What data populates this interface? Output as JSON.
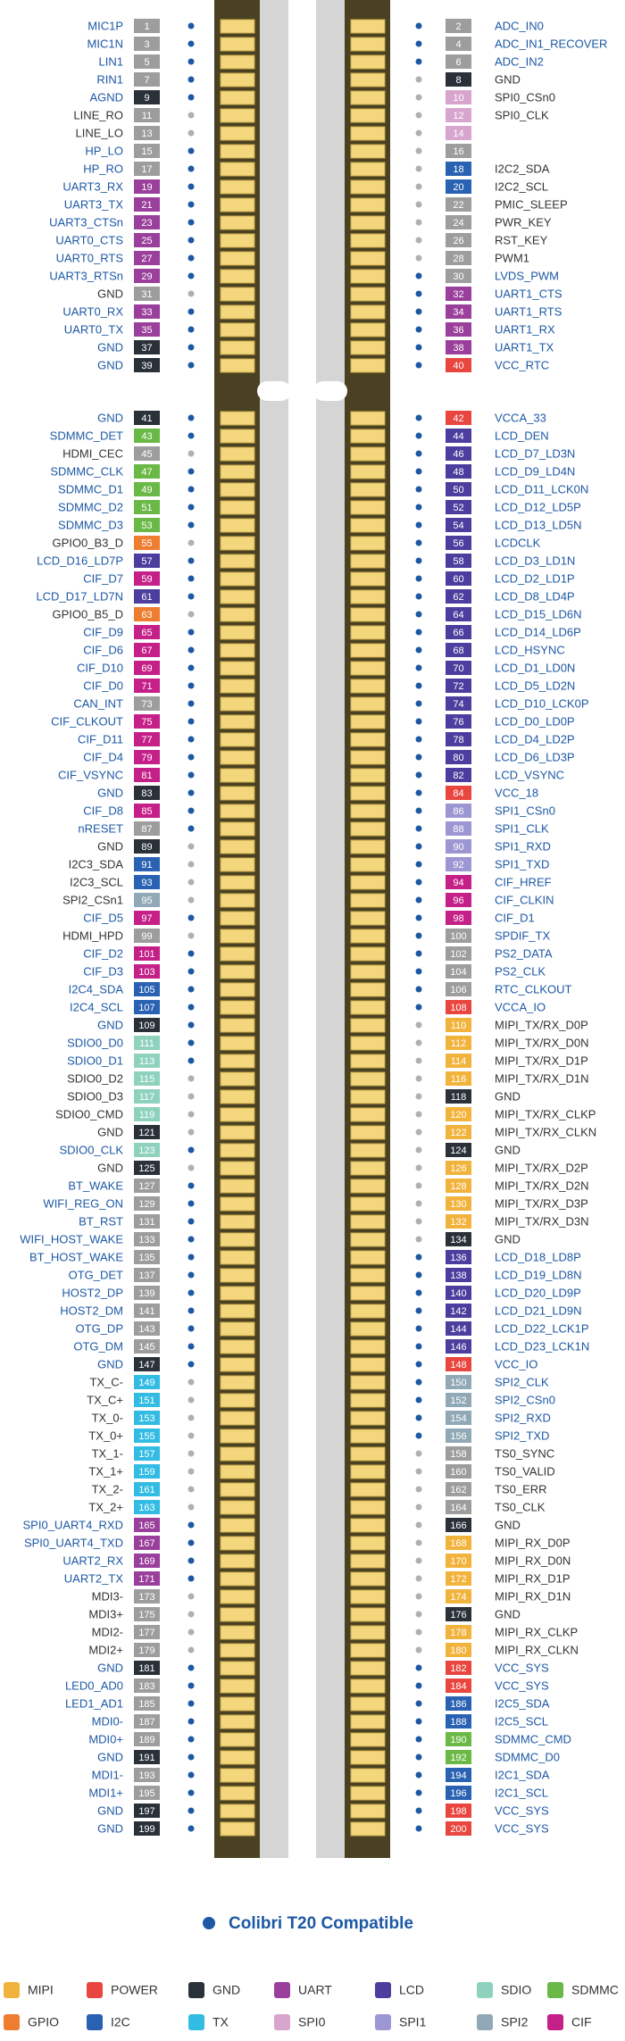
{
  "pins": {
    "left": [
      [
        1,
        "MIC1P",
        null,
        true
      ],
      [
        3,
        "MIC1N",
        null,
        true
      ],
      [
        5,
        "LIN1",
        null,
        true
      ],
      [
        7,
        "RIN1",
        null,
        true
      ],
      [
        9,
        "AGND",
        "GND",
        true
      ],
      [
        11,
        "LINE_RO",
        null,
        false
      ],
      [
        13,
        "LINE_LO",
        null,
        false
      ],
      [
        15,
        "HP_LO",
        null,
        true
      ],
      [
        17,
        "HP_RO",
        null,
        true
      ],
      [
        19,
        "UART3_RX",
        "UART",
        true
      ],
      [
        21,
        "UART3_TX",
        "UART",
        true
      ],
      [
        23,
        "UART3_CTSn",
        "UART",
        true
      ],
      [
        25,
        "UART0_CTS",
        "UART",
        true
      ],
      [
        27,
        "UART0_RTS",
        "UART",
        true
      ],
      [
        29,
        "UART3_RTSn",
        "UART",
        true
      ],
      [
        31,
        "GND",
        null,
        false
      ],
      [
        33,
        "UART0_RX",
        "UART",
        true
      ],
      [
        35,
        "UART0_TX",
        "UART",
        true
      ],
      [
        37,
        "GND",
        "GND",
        true
      ],
      [
        39,
        "GND",
        "GND",
        true
      ],
      [
        41,
        "GND",
        "GND",
        true
      ],
      [
        43,
        "SDMMC_DET",
        "SDMMC",
        true
      ],
      [
        45,
        "HDMI_CEC",
        null,
        false
      ],
      [
        47,
        "SDMMC_CLK",
        "SDMMC",
        true
      ],
      [
        49,
        "SDMMC_D1",
        "SDMMC",
        true
      ],
      [
        51,
        "SDMMC_D2",
        "SDMMC",
        true
      ],
      [
        53,
        "SDMMC_D3",
        "SDMMC",
        true
      ],
      [
        55,
        "GPIO0_B3_D",
        "GPIO",
        false
      ],
      [
        57,
        "LCD_D16_LD7P",
        "LCD",
        true
      ],
      [
        59,
        "CIF_D7",
        "CIF",
        true
      ],
      [
        61,
        "LCD_D17_LD7N",
        "LCD",
        true
      ],
      [
        63,
        "GPIO0_B5_D",
        "GPIO",
        false
      ],
      [
        65,
        "CIF_D9",
        "CIF",
        true
      ],
      [
        67,
        "CIF_D6",
        "CIF",
        true
      ],
      [
        69,
        "CIF_D10",
        "CIF",
        true
      ],
      [
        71,
        "CIF_D0",
        "CIF",
        true
      ],
      [
        73,
        "CAN_INT",
        null,
        true
      ],
      [
        75,
        "CIF_CLKOUT",
        "CIF",
        true
      ],
      [
        77,
        "CIF_D11",
        "CIF",
        true
      ],
      [
        79,
        "CIF_D4",
        "CIF",
        true
      ],
      [
        81,
        "CIF_VSYNC",
        "CIF",
        true
      ],
      [
        83,
        "GND",
        "GND",
        true
      ],
      [
        85,
        "CIF_D8",
        "CIF",
        true
      ],
      [
        87,
        "nRESET",
        null,
        true
      ],
      [
        89,
        "GND",
        "GND",
        false
      ],
      [
        91,
        "I2C3_SDA",
        "I2C",
        false
      ],
      [
        93,
        "I2C3_SCL",
        "I2C",
        false
      ],
      [
        95,
        "SPI2_CSn1",
        "SPI2",
        false
      ],
      [
        97,
        "CIF_D5",
        "CIF",
        true
      ],
      [
        99,
        "HDMI_HPD",
        null,
        false
      ],
      [
        101,
        "CIF_D2",
        "CIF",
        true
      ],
      [
        103,
        "CIF_D3",
        "CIF",
        true
      ],
      [
        105,
        "I2C4_SDA",
        "I2C",
        true
      ],
      [
        107,
        "I2C4_SCL",
        "I2C",
        true
      ],
      [
        109,
        "GND",
        "GND",
        true
      ],
      [
        111,
        "SDIO0_D0",
        "SDIO",
        true
      ],
      [
        113,
        "SDIO0_D1",
        "SDIO",
        true
      ],
      [
        115,
        "SDIO0_D2",
        "SDIO",
        false
      ],
      [
        117,
        "SDIO0_D3",
        "SDIO",
        false
      ],
      [
        119,
        "SDIO0_CMD",
        "SDIO",
        false
      ],
      [
        121,
        "GND",
        "GND",
        false
      ],
      [
        123,
        "SDIO0_CLK",
        "SDIO",
        true
      ],
      [
        125,
        "GND",
        "GND",
        false
      ],
      [
        127,
        "BT_WAKE",
        null,
        true
      ],
      [
        129,
        "WIFI_REG_ON",
        null,
        true
      ],
      [
        131,
        "BT_RST",
        null,
        true
      ],
      [
        133,
        "WIFI_HOST_WAKE",
        null,
        true
      ],
      [
        135,
        "BT_HOST_WAKE",
        null,
        true
      ],
      [
        137,
        "OTG_DET",
        null,
        true
      ],
      [
        139,
        "HOST2_DP",
        null,
        true
      ],
      [
        141,
        "HOST2_DM",
        null,
        true
      ],
      [
        143,
        "OTG_DP",
        null,
        true
      ],
      [
        145,
        "OTG_DM",
        null,
        true
      ],
      [
        147,
        "GND",
        "GND",
        true
      ],
      [
        149,
        "TX_C-",
        "TX",
        false
      ],
      [
        151,
        "TX_C+",
        "TX",
        false
      ],
      [
        153,
        "TX_0-",
        "TX",
        false
      ],
      [
        155,
        "TX_0+",
        "TX",
        false
      ],
      [
        157,
        "TX_1-",
        "TX",
        false
      ],
      [
        159,
        "TX_1+",
        "TX",
        false
      ],
      [
        161,
        "TX_2-",
        "TX",
        false
      ],
      [
        163,
        "TX_2+",
        "TX",
        false
      ],
      [
        165,
        "SPI0_UART4_RXD",
        "UART",
        true
      ],
      [
        167,
        "SPI0_UART4_TXD",
        "UART",
        true
      ],
      [
        169,
        "UART2_RX",
        "UART",
        true
      ],
      [
        171,
        "UART2_TX",
        "UART",
        true
      ],
      [
        173,
        "MDI3-",
        null,
        false
      ],
      [
        175,
        "MDI3+",
        null,
        false
      ],
      [
        177,
        "MDI2-",
        null,
        false
      ],
      [
        179,
        "MDI2+",
        null,
        false
      ],
      [
        181,
        "GND",
        "GND",
        true
      ],
      [
        183,
        "LED0_AD0",
        null,
        true
      ],
      [
        185,
        "LED1_AD1",
        null,
        true
      ],
      [
        187,
        "MDI0-",
        null,
        true
      ],
      [
        189,
        "MDI0+",
        null,
        true
      ],
      [
        191,
        "GND",
        "GND",
        true
      ],
      [
        193,
        "MDI1-",
        null,
        true
      ],
      [
        195,
        "MDI1+",
        null,
        true
      ],
      [
        197,
        "GND",
        "GND",
        true
      ],
      [
        199,
        "GND",
        "GND",
        true
      ]
    ],
    "right": [
      [
        2,
        "ADC_IN0",
        null,
        true
      ],
      [
        4,
        "ADC_IN1_RECOVER",
        null,
        true
      ],
      [
        6,
        "ADC_IN2",
        null,
        true
      ],
      [
        8,
        "GND",
        "GND",
        false
      ],
      [
        10,
        "SPI0_CSn0",
        "SPI0",
        false
      ],
      [
        12,
        "SPI0_CLK",
        "SPI0",
        false
      ],
      [
        14,
        null,
        "SPI0",
        false
      ],
      [
        16,
        null,
        null,
        false
      ],
      [
        18,
        "I2C2_SDA",
        "I2C",
        false
      ],
      [
        20,
        "I2C2_SCL",
        "I2C",
        false
      ],
      [
        22,
        "PMIC_SLEEP",
        null,
        false
      ],
      [
        24,
        "PWR_KEY",
        null,
        false
      ],
      [
        26,
        "RST_KEY",
        null,
        false
      ],
      [
        28,
        "PWM1",
        null,
        false
      ],
      [
        30,
        "LVDS_PWM",
        null,
        true
      ],
      [
        32,
        "UART1_CTS",
        "UART",
        true
      ],
      [
        34,
        "UART1_RTS",
        "UART",
        true
      ],
      [
        36,
        "UART1_RX",
        "UART",
        true
      ],
      [
        38,
        "UART1_TX",
        "UART",
        true
      ],
      [
        40,
        "VCC_RTC",
        "POWER",
        true
      ],
      [
        42,
        "VCCA_33",
        "POWER",
        true
      ],
      [
        44,
        "LCD_DEN",
        "LCD",
        true
      ],
      [
        46,
        "LCD_D7_LD3N",
        "LCD",
        true
      ],
      [
        48,
        "LCD_D9_LD4N",
        "LCD",
        true
      ],
      [
        50,
        "LCD_D11_LCK0N",
        "LCD",
        true
      ],
      [
        52,
        "LCD_D12_LD5P",
        "LCD",
        true
      ],
      [
        54,
        "LCD_D13_LD5N",
        "LCD",
        true
      ],
      [
        56,
        "LCDCLK",
        "LCD",
        true
      ],
      [
        58,
        "LCD_D3_LD1N",
        "LCD",
        true
      ],
      [
        60,
        "LCD_D2_LD1P",
        "LCD",
        true
      ],
      [
        62,
        "LCD_D8_LD4P",
        "LCD",
        true
      ],
      [
        64,
        "LCD_D15_LD6N",
        "LCD",
        true
      ],
      [
        66,
        "LCD_D14_LD6P",
        "LCD",
        true
      ],
      [
        68,
        "LCD_HSYNC",
        "LCD",
        true
      ],
      [
        70,
        "LCD_D1_LD0N",
        "LCD",
        true
      ],
      [
        72,
        "LCD_D5_LD2N",
        "LCD",
        true
      ],
      [
        74,
        "LCD_D10_LCK0P",
        "LCD",
        true
      ],
      [
        76,
        "LCD_D0_LD0P",
        "LCD",
        true
      ],
      [
        78,
        "LCD_D4_LD2P",
        "LCD",
        true
      ],
      [
        80,
        "LCD_D6_LD3P",
        "LCD",
        true
      ],
      [
        82,
        "LCD_VSYNC",
        "LCD",
        true
      ],
      [
        84,
        "VCC_18",
        "POWER",
        true
      ],
      [
        86,
        "SPI1_CSn0",
        "SPI1",
        true
      ],
      [
        88,
        "SPI1_CLK",
        "SPI1",
        true
      ],
      [
        90,
        "SPI1_RXD",
        "SPI1",
        true
      ],
      [
        92,
        "SPI1_TXD",
        "SPI1",
        true
      ],
      [
        94,
        "CIF_HREF",
        "CIF",
        true
      ],
      [
        96,
        "CIF_CLKIN",
        "CIF",
        true
      ],
      [
        98,
        "CIF_D1",
        "CIF",
        true
      ],
      [
        100,
        "SPDIF_TX",
        null,
        true
      ],
      [
        102,
        "PS2_DATA",
        null,
        true
      ],
      [
        104,
        "PS2_CLK",
        null,
        true
      ],
      [
        106,
        "RTC_CLKOUT",
        null,
        true
      ],
      [
        108,
        "VCCA_IO",
        "POWER",
        true
      ],
      [
        110,
        "MIPI_TX/RX_D0P",
        "MIPI",
        false
      ],
      [
        112,
        "MIPI_TX/RX_D0N",
        "MIPI",
        false
      ],
      [
        114,
        "MIPI_TX/RX_D1P",
        "MIPI",
        false
      ],
      [
        116,
        "MIPI_TX/RX_D1N",
        "MIPI",
        false
      ],
      [
        118,
        "GND",
        "GND",
        false
      ],
      [
        120,
        "MIPI_TX/RX_CLKP",
        "MIPI",
        false
      ],
      [
        122,
        "MIPI_TX/RX_CLKN",
        "MIPI",
        false
      ],
      [
        124,
        "GND",
        "GND",
        false
      ],
      [
        126,
        "MIPI_TX/RX_D2P",
        "MIPI",
        false
      ],
      [
        128,
        "MIPI_TX/RX_D2N",
        "MIPI",
        false
      ],
      [
        130,
        "MIPI_TX/RX_D3P",
        "MIPI",
        false
      ],
      [
        132,
        "MIPI_TX/RX_D3N",
        "MIPI",
        false
      ],
      [
        134,
        "GND",
        "GND",
        false
      ],
      [
        136,
        "LCD_D18_LD8P",
        "LCD",
        true
      ],
      [
        138,
        "LCD_D19_LD8N",
        "LCD",
        true
      ],
      [
        140,
        "LCD_D20_LD9P",
        "LCD",
        true
      ],
      [
        142,
        "LCD_D21_LD9N",
        "LCD",
        true
      ],
      [
        144,
        "LCD_D22_LCK1P",
        "LCD",
        true
      ],
      [
        146,
        "LCD_D23_LCK1N",
        "LCD",
        true
      ],
      [
        148,
        "VCC_IO",
        "POWER",
        true
      ],
      [
        150,
        "SPI2_CLK",
        "SPI2",
        true
      ],
      [
        152,
        "SPI2_CSn0",
        "SPI2",
        true
      ],
      [
        154,
        "SPI2_RXD",
        "SPI2",
        true
      ],
      [
        156,
        "SPI2_TXD",
        "SPI2",
        true
      ],
      [
        158,
        "TS0_SYNC",
        null,
        false
      ],
      [
        160,
        "TS0_VALID",
        null,
        false
      ],
      [
        162,
        "TS0_ERR",
        null,
        false
      ],
      [
        164,
        "TS0_CLK",
        null,
        false
      ],
      [
        166,
        "GND",
        "GND",
        false
      ],
      [
        168,
        "MIPI_RX_D0P",
        "MIPI",
        false
      ],
      [
        170,
        "MIPI_RX_D0N",
        "MIPI",
        false
      ],
      [
        172,
        "MIPI_RX_D1P",
        "MIPI",
        false
      ],
      [
        174,
        "MIPI_RX_D1N",
        "MIPI",
        false
      ],
      [
        176,
        "GND",
        "GND",
        false
      ],
      [
        178,
        "MIPI_RX_CLKP",
        "MIPI",
        false
      ],
      [
        180,
        "MIPI_RX_CLKN",
        "MIPI",
        false
      ],
      [
        182,
        "VCC_SYS",
        "POWER",
        true
      ],
      [
        184,
        "VCC_SYS",
        "POWER",
        true
      ],
      [
        186,
        "I2C5_SDA",
        "I2C",
        true
      ],
      [
        188,
        "I2C5_SCL",
        "I2C",
        true
      ],
      [
        190,
        "SDMMC_CMD",
        "SDMMC",
        true
      ],
      [
        192,
        "SDMMC_D0",
        "SDMMC",
        true
      ],
      [
        194,
        "I2C1_SDA",
        "I2C",
        true
      ],
      [
        196,
        "I2C1_SCL",
        "I2C",
        true
      ],
      [
        198,
        "VCC_SYS",
        "POWER",
        true
      ],
      [
        200,
        "VCC_SYS",
        "POWER",
        true
      ]
    ]
  },
  "footer": {
    "label": "Colibri T20 Compatible"
  },
  "colors": {
    "compatible": "#1d58a5",
    "other_text": "#333333",
    "other_dot": "#b0b0b0",
    "unassigned": "#9d9d9d"
  },
  "legend": [
    {
      "name": "MIPI",
      "color": "#f2b33d"
    },
    {
      "name": "POWER",
      "color": "#e8463f"
    },
    {
      "name": "GND",
      "color": "#2a3139"
    },
    {
      "name": "UART",
      "color": "#9a3f9b"
    },
    {
      "name": "LCD",
      "color": "#4b3e9e"
    },
    {
      "name": "SDIO",
      "color": "#8ed2bd"
    },
    {
      "name": "SDMMC",
      "color": "#6ab946"
    },
    {
      "name": "GPIO",
      "color": "#ef7d2f"
    },
    {
      "name": "I2C",
      "color": "#2a62b3"
    },
    {
      "name": "TX",
      "color": "#33bce3"
    },
    {
      "name": "SPI0",
      "color": "#d8a5cf"
    },
    {
      "name": "SPI1",
      "color": "#9c97d3"
    },
    {
      "name": "SPI2",
      "color": "#91a9b6"
    },
    {
      "name": "CIF",
      "color": "#c51f88"
    }
  ]
}
